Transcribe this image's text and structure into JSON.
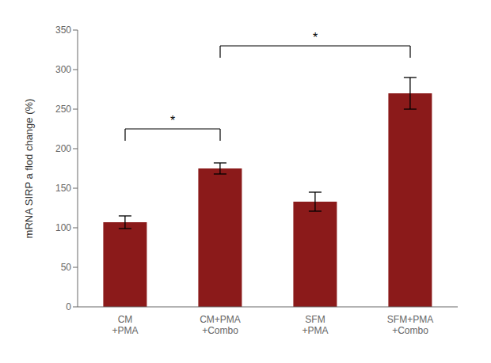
{
  "chart_data": {
    "type": "bar",
    "categories": [
      "CM\n+PMA",
      "CM+PMA\n+Combo",
      "SFM\n+PMA",
      "SFM+PMA\n+Combo"
    ],
    "values": [
      107,
      175,
      133,
      270
    ],
    "errors": [
      8,
      7,
      12,
      20
    ],
    "color": "#8B1A1A",
    "ylabel": "mRNA SIRP a flod change (%)",
    "ylim": [
      0,
      350
    ],
    "yticks": [
      0,
      50,
      100,
      150,
      200,
      250,
      300,
      350
    ],
    "grid": false,
    "annotations": [
      {
        "text": "*",
        "from": "CM\n+PMA",
        "to": "CM+PMA\n+Combo",
        "y": 225,
        "drop": 15
      },
      {
        "text": "*",
        "from": "CM+PMA\n+Combo",
        "to": "SFM+PMA\n+Combo",
        "y": 330,
        "drop": 15
      }
    ]
  }
}
